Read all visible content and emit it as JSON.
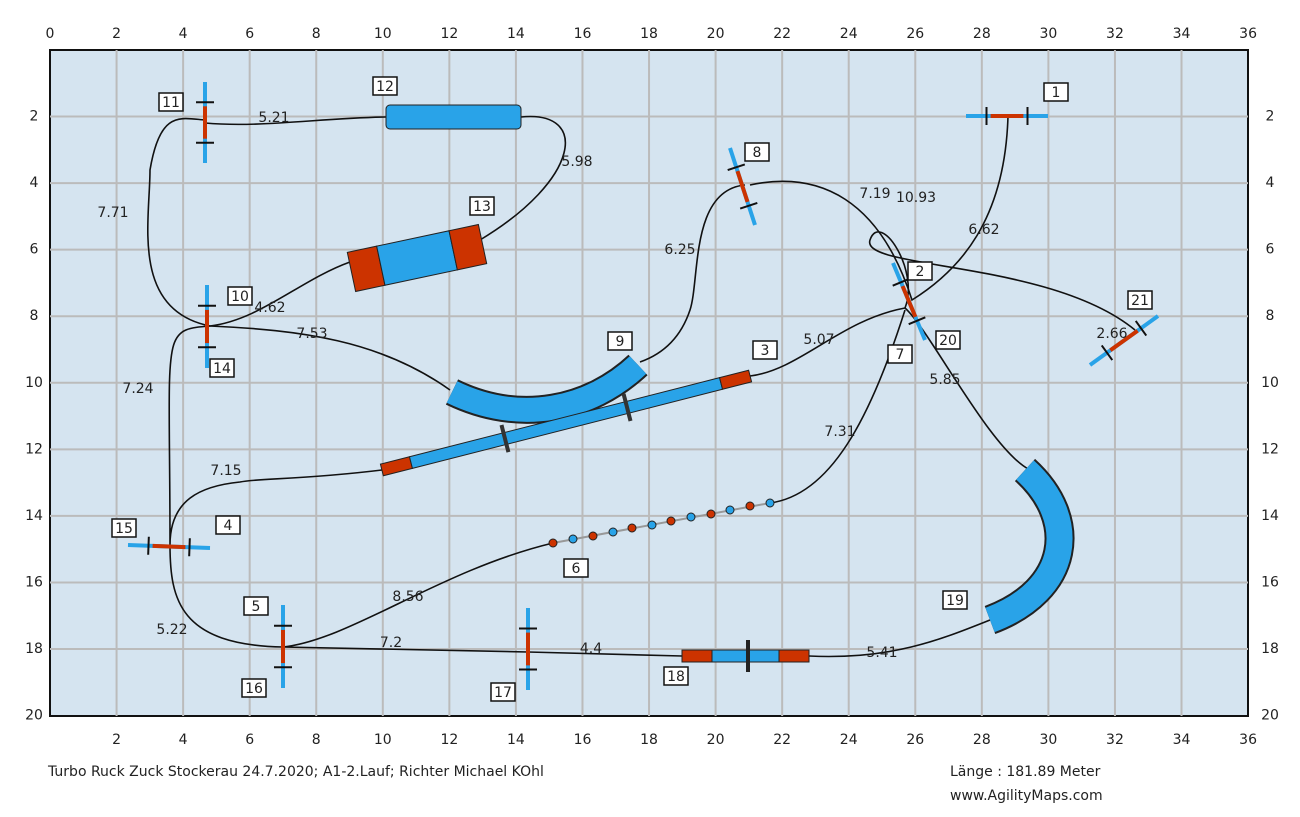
{
  "axes": {
    "x_ticks": [
      0,
      2,
      4,
      6,
      8,
      10,
      12,
      14,
      16,
      18,
      20,
      22,
      24,
      26,
      28,
      30,
      32,
      34,
      36
    ],
    "y_ticks": [
      2,
      4,
      6,
      8,
      10,
      12,
      14,
      16,
      18,
      20
    ]
  },
  "obstacles": [
    "1",
    "2",
    "3",
    "4",
    "5",
    "6",
    "7",
    "8",
    "9",
    "10",
    "11",
    "12",
    "13",
    "14",
    "15",
    "16",
    "17",
    "18",
    "19",
    "20",
    "21"
  ],
  "distances": [
    "5.21",
    "5.98",
    "7.71",
    "6.25",
    "7.19",
    "10.93",
    "6.62",
    "4.62",
    "7.53",
    "5.07",
    "2.66",
    "7.24",
    "5.85",
    "7.31",
    "7.15",
    "8.56",
    "5.22",
    "7.2",
    "4.4",
    "5.41"
  ],
  "footer": {
    "event": "Turbo Ruck Zuck Stockerau 24.7.2020; A1-2.Lauf; Richter Michael KOhl",
    "length": "Länge : 181.89 Meter",
    "site": "www.AgilityMaps.com"
  }
}
